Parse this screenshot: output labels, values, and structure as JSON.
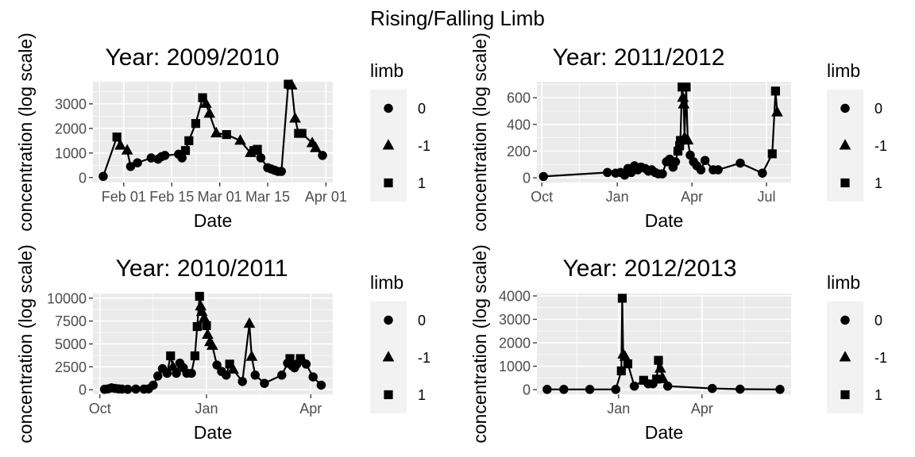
{
  "title": "Rising/Falling Limb",
  "chart_data": [
    {
      "type": "line",
      "title": "Year: 2009/2010",
      "xlabel": "Date",
      "ylabel": "concentration (log scale)",
      "xlim": [
        "2010-01-23",
        "2010-04-03"
      ],
      "ylim": [
        -200,
        3900
      ],
      "x_ticks": [
        {
          "date": "2010-02-01",
          "label": "Feb 01"
        },
        {
          "date": "2010-02-15",
          "label": "Feb 15"
        },
        {
          "date": "2010-03-01",
          "label": "Mar 01"
        },
        {
          "date": "2010-03-15",
          "label": "Mar 15"
        },
        {
          "date": "2010-04-01",
          "label": "Apr 01"
        }
      ],
      "y_ticks": [
        0,
        1000,
        2000,
        3000
      ],
      "legend": {
        "title": "limb",
        "position": "right",
        "entries": [
          {
            "shape": "circle",
            "label": "0"
          },
          {
            "shape": "triangle",
            "label": "-1"
          },
          {
            "shape": "square",
            "label": "1"
          }
        ]
      },
      "points": [
        {
          "x": "2010-01-26",
          "y": 50,
          "limb": "0"
        },
        {
          "x": "2010-01-30",
          "y": 1650,
          "limb": "1"
        },
        {
          "x": "2010-01-31",
          "y": 1300,
          "limb": "-1"
        },
        {
          "x": "2010-02-02",
          "y": 1100,
          "limb": "-1"
        },
        {
          "x": "2010-02-03",
          "y": 450,
          "limb": "0"
        },
        {
          "x": "2010-02-05",
          "y": 600,
          "limb": "0"
        },
        {
          "x": "2010-02-09",
          "y": 800,
          "limb": "0"
        },
        {
          "x": "2010-02-11",
          "y": 750,
          "limb": "0"
        },
        {
          "x": "2010-02-12",
          "y": 850,
          "limb": "0"
        },
        {
          "x": "2010-02-13",
          "y": 900,
          "limb": "0"
        },
        {
          "x": "2010-02-17",
          "y": 950,
          "limb": "0"
        },
        {
          "x": "2010-02-18",
          "y": 800,
          "limb": "0"
        },
        {
          "x": "2010-02-19",
          "y": 1100,
          "limb": "1"
        },
        {
          "x": "2010-02-20",
          "y": 1500,
          "limb": "1"
        },
        {
          "x": "2010-02-22",
          "y": 2200,
          "limb": "1"
        },
        {
          "x": "2010-02-24",
          "y": 3250,
          "limb": "1"
        },
        {
          "x": "2010-02-25",
          "y": 3000,
          "limb": "-1"
        },
        {
          "x": "2010-02-26",
          "y": 2600,
          "limb": "-1"
        },
        {
          "x": "2010-02-28",
          "y": 1800,
          "limb": "-1"
        },
        {
          "x": "2010-03-03",
          "y": 1750,
          "limb": "1"
        },
        {
          "x": "2010-03-07",
          "y": 1500,
          "limb": "-1"
        },
        {
          "x": "2010-03-10",
          "y": 1000,
          "limb": "-1"
        },
        {
          "x": "2010-03-11",
          "y": 1100,
          "limb": "1"
        },
        {
          "x": "2010-03-12",
          "y": 1150,
          "limb": "1"
        },
        {
          "x": "2010-03-13",
          "y": 800,
          "limb": "0"
        },
        {
          "x": "2010-03-15",
          "y": 400,
          "limb": "0"
        },
        {
          "x": "2010-03-16",
          "y": 350,
          "limb": "0"
        },
        {
          "x": "2010-03-17",
          "y": 300,
          "limb": "0"
        },
        {
          "x": "2010-03-18",
          "y": 250,
          "limb": "0"
        },
        {
          "x": "2010-03-19",
          "y": 250,
          "limb": "0"
        },
        {
          "x": "2010-03-21",
          "y": 3800,
          "limb": "1"
        },
        {
          "x": "2010-03-22",
          "y": 3750,
          "limb": "-1"
        },
        {
          "x": "2010-03-23",
          "y": 2400,
          "limb": "-1"
        },
        {
          "x": "2010-03-24",
          "y": 1800,
          "limb": "1"
        },
        {
          "x": "2010-03-25",
          "y": 1800,
          "limb": "1"
        },
        {
          "x": "2010-03-28",
          "y": 1400,
          "limb": "-1"
        },
        {
          "x": "2010-03-29",
          "y": 1200,
          "limb": "-1"
        },
        {
          "x": "2010-03-31",
          "y": 900,
          "limb": "0"
        }
      ]
    },
    {
      "type": "line",
      "title": "Year: 2011/2012",
      "xlabel": "Date",
      "ylabel": "concentration (log scale)",
      "xlim": [
        "2011-09-25",
        "2012-07-31"
      ],
      "ylim": [
        -35,
        720
      ],
      "x_ticks": [
        {
          "date": "2011-10-01",
          "label": "Oct"
        },
        {
          "date": "2012-01-01",
          "label": "Jan"
        },
        {
          "date": "2012-04-01",
          "label": "Apr"
        },
        {
          "date": "2012-07-01",
          "label": "Jul"
        }
      ],
      "y_ticks": [
        0,
        200,
        400,
        600
      ],
      "legend": {
        "title": "limb",
        "position": "right",
        "entries": [
          {
            "shape": "circle",
            "label": "0"
          },
          {
            "shape": "triangle",
            "label": "-1"
          },
          {
            "shape": "square",
            "label": "1"
          }
        ]
      },
      "points": [
        {
          "x": "2011-10-03",
          "y": 10,
          "limb": "0"
        },
        {
          "x": "2011-12-20",
          "y": 40,
          "limb": "0"
        },
        {
          "x": "2011-12-30",
          "y": 35,
          "limb": "0"
        },
        {
          "x": "2012-01-05",
          "y": 40,
          "limb": "0"
        },
        {
          "x": "2012-01-10",
          "y": 20,
          "limb": "0"
        },
        {
          "x": "2012-01-14",
          "y": 70,
          "limb": "0"
        },
        {
          "x": "2012-01-18",
          "y": 40,
          "limb": "0"
        },
        {
          "x": "2012-01-22",
          "y": 90,
          "limb": "0"
        },
        {
          "x": "2012-01-26",
          "y": 60,
          "limb": "0"
        },
        {
          "x": "2012-01-30",
          "y": 80,
          "limb": "0"
        },
        {
          "x": "2012-02-04",
          "y": 70,
          "limb": "0"
        },
        {
          "x": "2012-02-08",
          "y": 50,
          "limb": "0"
        },
        {
          "x": "2012-02-12",
          "y": 60,
          "limb": "0"
        },
        {
          "x": "2012-02-16",
          "y": 40,
          "limb": "0"
        },
        {
          "x": "2012-02-20",
          "y": 30,
          "limb": "0"
        },
        {
          "x": "2012-02-25",
          "y": 30,
          "limb": "0"
        },
        {
          "x": "2012-03-01",
          "y": 120,
          "limb": "0"
        },
        {
          "x": "2012-03-05",
          "y": 140,
          "limb": "0"
        },
        {
          "x": "2012-03-09",
          "y": 80,
          "limb": "0"
        },
        {
          "x": "2012-03-12",
          "y": 120,
          "limb": "0"
        },
        {
          "x": "2012-03-15",
          "y": 200,
          "limb": "1"
        },
        {
          "x": "2012-03-17",
          "y": 240,
          "limb": "1"
        },
        {
          "x": "2012-03-18",
          "y": 280,
          "limb": "1"
        },
        {
          "x": "2012-03-20",
          "y": 680,
          "limb": "1"
        },
        {
          "x": "2012-03-21",
          "y": 600,
          "limb": "-1"
        },
        {
          "x": "2012-03-22",
          "y": 550,
          "limb": "-1"
        },
        {
          "x": "2012-03-23",
          "y": 300,
          "limb": "-1"
        },
        {
          "x": "2012-03-25",
          "y": 680,
          "limb": "1"
        },
        {
          "x": "2012-03-27",
          "y": 280,
          "limb": "-1"
        },
        {
          "x": "2012-03-30",
          "y": 170,
          "limb": "0"
        },
        {
          "x": "2012-04-03",
          "y": 120,
          "limb": "0"
        },
        {
          "x": "2012-04-07",
          "y": 90,
          "limb": "0"
        },
        {
          "x": "2012-04-12",
          "y": 60,
          "limb": "0"
        },
        {
          "x": "2012-04-17",
          "y": 130,
          "limb": "0"
        },
        {
          "x": "2012-04-27",
          "y": 60,
          "limb": "0"
        },
        {
          "x": "2012-05-03",
          "y": 60,
          "limb": "0"
        },
        {
          "x": "2012-05-30",
          "y": 110,
          "limb": "0"
        },
        {
          "x": "2012-06-26",
          "y": 35,
          "limb": "0"
        },
        {
          "x": "2012-07-08",
          "y": 180,
          "limb": "1"
        },
        {
          "x": "2012-07-12",
          "y": 650,
          "limb": "1"
        },
        {
          "x": "2012-07-14",
          "y": 490,
          "limb": "-1"
        }
      ]
    },
    {
      "type": "line",
      "title": "Year: 2010/2011",
      "xlabel": "Date",
      "ylabel": "concentration (log scale)",
      "xlim": [
        "2010-09-25",
        "2011-04-20"
      ],
      "ylim": [
        -500,
        10500
      ],
      "x_ticks": [
        {
          "date": "2010-10-01",
          "label": "Oct"
        },
        {
          "date": "2011-01-01",
          "label": "Jan"
        },
        {
          "date": "2011-04-01",
          "label": "Apr"
        }
      ],
      "y_ticks": [
        0,
        2500,
        5000,
        7500,
        10000
      ],
      "legend": {
        "title": "limb",
        "position": "right",
        "entries": [
          {
            "shape": "circle",
            "label": "0"
          },
          {
            "shape": "triangle",
            "label": "-1"
          },
          {
            "shape": "square",
            "label": "1"
          }
        ]
      },
      "points": [
        {
          "x": "2010-10-05",
          "y": 50,
          "limb": "0"
        },
        {
          "x": "2010-10-08",
          "y": 100,
          "limb": "0"
        },
        {
          "x": "2010-10-11",
          "y": 200,
          "limb": "0"
        },
        {
          "x": "2010-10-14",
          "y": 150,
          "limb": "0"
        },
        {
          "x": "2010-10-17",
          "y": 100,
          "limb": "0"
        },
        {
          "x": "2010-10-20",
          "y": 80,
          "limb": "0"
        },
        {
          "x": "2010-10-25",
          "y": 50,
          "limb": "0"
        },
        {
          "x": "2010-11-01",
          "y": 80,
          "limb": "0"
        },
        {
          "x": "2010-11-08",
          "y": 70,
          "limb": "0"
        },
        {
          "x": "2010-11-12",
          "y": 100,
          "limb": "0"
        },
        {
          "x": "2010-11-16",
          "y": 500,
          "limb": "0"
        },
        {
          "x": "2010-11-20",
          "y": 1500,
          "limb": "0"
        },
        {
          "x": "2010-11-24",
          "y": 2300,
          "limb": "0"
        },
        {
          "x": "2010-11-28",
          "y": 1800,
          "limb": "0"
        },
        {
          "x": "2010-12-01",
          "y": 3700,
          "limb": "1"
        },
        {
          "x": "2010-12-03",
          "y": 2500,
          "limb": "-1"
        },
        {
          "x": "2010-12-06",
          "y": 1800,
          "limb": "0"
        },
        {
          "x": "2010-12-09",
          "y": 2900,
          "limb": "0"
        },
        {
          "x": "2010-12-12",
          "y": 2400,
          "limb": "0"
        },
        {
          "x": "2010-12-15",
          "y": 1800,
          "limb": "0"
        },
        {
          "x": "2010-12-19",
          "y": 1800,
          "limb": "0"
        },
        {
          "x": "2010-12-22",
          "y": 3700,
          "limb": "1"
        },
        {
          "x": "2010-12-24",
          "y": 6900,
          "limb": "1"
        },
        {
          "x": "2010-12-26",
          "y": 10200,
          "limb": "1"
        },
        {
          "x": "2010-12-27",
          "y": 9100,
          "limb": "-1"
        },
        {
          "x": "2010-12-28",
          "y": 8500,
          "limb": "-1"
        },
        {
          "x": "2010-12-30",
          "y": 7800,
          "limb": "-1"
        },
        {
          "x": "2011-01-01",
          "y": 7000,
          "limb": "1"
        },
        {
          "x": "2011-01-02",
          "y": 6000,
          "limb": "-1"
        },
        {
          "x": "2011-01-04",
          "y": 5200,
          "limb": "-1"
        },
        {
          "x": "2011-01-06",
          "y": 4800,
          "limb": "-1"
        },
        {
          "x": "2011-01-10",
          "y": 2700,
          "limb": "0"
        },
        {
          "x": "2011-01-14",
          "y": 2000,
          "limb": "0"
        },
        {
          "x": "2011-01-18",
          "y": 1600,
          "limb": "0"
        },
        {
          "x": "2011-01-21",
          "y": 2800,
          "limb": "1"
        },
        {
          "x": "2011-01-24",
          "y": 2200,
          "limb": "-1"
        },
        {
          "x": "2011-02-01",
          "y": 900,
          "limb": "0"
        },
        {
          "x": "2011-02-07",
          "y": 7200,
          "limb": "-1"
        },
        {
          "x": "2011-02-09",
          "y": 3600,
          "limb": "-1"
        },
        {
          "x": "2011-02-12",
          "y": 1600,
          "limb": "0"
        },
        {
          "x": "2011-02-20",
          "y": 700,
          "limb": "0"
        },
        {
          "x": "2011-03-07",
          "y": 1600,
          "limb": "0"
        },
        {
          "x": "2011-03-12",
          "y": 2900,
          "limb": "0"
        },
        {
          "x": "2011-03-14",
          "y": 3400,
          "limb": "1"
        },
        {
          "x": "2011-03-16",
          "y": 2600,
          "limb": "0"
        },
        {
          "x": "2011-03-18",
          "y": 2400,
          "limb": "0"
        },
        {
          "x": "2011-03-20",
          "y": 2800,
          "limb": "0"
        },
        {
          "x": "2011-03-23",
          "y": 3400,
          "limb": "1"
        },
        {
          "x": "2011-03-25",
          "y": 3200,
          "limb": "-1"
        },
        {
          "x": "2011-03-28",
          "y": 2800,
          "limb": "0"
        },
        {
          "x": "2011-04-03",
          "y": 1400,
          "limb": "0"
        },
        {
          "x": "2011-04-10",
          "y": 500,
          "limb": "0"
        }
      ]
    },
    {
      "type": "line",
      "title": "Year: 2012/2013",
      "xlabel": "Date",
      "ylabel": "concentration (log scale)",
      "xlim": [
        "2012-10-05",
        "2013-07-06"
      ],
      "ylim": [
        -200,
        4100
      ],
      "x_ticks": [
        {
          "date": "2013-01-01",
          "label": "Jan"
        },
        {
          "date": "2013-04-01",
          "label": "Apr"
        }
      ],
      "y_ticks": [
        0,
        1000,
        2000,
        3000,
        4000
      ],
      "legend": {
        "title": "limb",
        "position": "right",
        "entries": [
          {
            "shape": "circle",
            "label": "0"
          },
          {
            "shape": "triangle",
            "label": "-1"
          },
          {
            "shape": "square",
            "label": "1"
          }
        ]
      },
      "points": [
        {
          "x": "2012-10-16",
          "y": 10,
          "limb": "0"
        },
        {
          "x": "2012-11-03",
          "y": 10,
          "limb": "0"
        },
        {
          "x": "2012-12-01",
          "y": 10,
          "limb": "0"
        },
        {
          "x": "2012-12-29",
          "y": 10,
          "limb": "0"
        },
        {
          "x": "2013-01-04",
          "y": 800,
          "limb": "1"
        },
        {
          "x": "2013-01-05",
          "y": 3900,
          "limb": "1"
        },
        {
          "x": "2013-01-06",
          "y": 1500,
          "limb": "-1"
        },
        {
          "x": "2013-01-08",
          "y": 1400,
          "limb": "-1"
        },
        {
          "x": "2013-01-11",
          "y": 1100,
          "limb": "1"
        },
        {
          "x": "2013-01-18",
          "y": 150,
          "limb": "0"
        },
        {
          "x": "2013-01-28",
          "y": 400,
          "limb": "1"
        },
        {
          "x": "2013-02-02",
          "y": 250,
          "limb": "0"
        },
        {
          "x": "2013-02-07",
          "y": 250,
          "limb": "0"
        },
        {
          "x": "2013-02-11",
          "y": 450,
          "limb": "1"
        },
        {
          "x": "2013-02-13",
          "y": 1250,
          "limb": "1"
        },
        {
          "x": "2013-02-15",
          "y": 900,
          "limb": "-1"
        },
        {
          "x": "2013-02-18",
          "y": 450,
          "limb": "-1"
        },
        {
          "x": "2013-02-23",
          "y": 150,
          "limb": "0"
        },
        {
          "x": "2013-04-12",
          "y": 50,
          "limb": "0"
        },
        {
          "x": "2013-05-12",
          "y": 20,
          "limb": "0"
        },
        {
          "x": "2013-06-24",
          "y": 10,
          "limb": "0"
        }
      ]
    }
  ]
}
